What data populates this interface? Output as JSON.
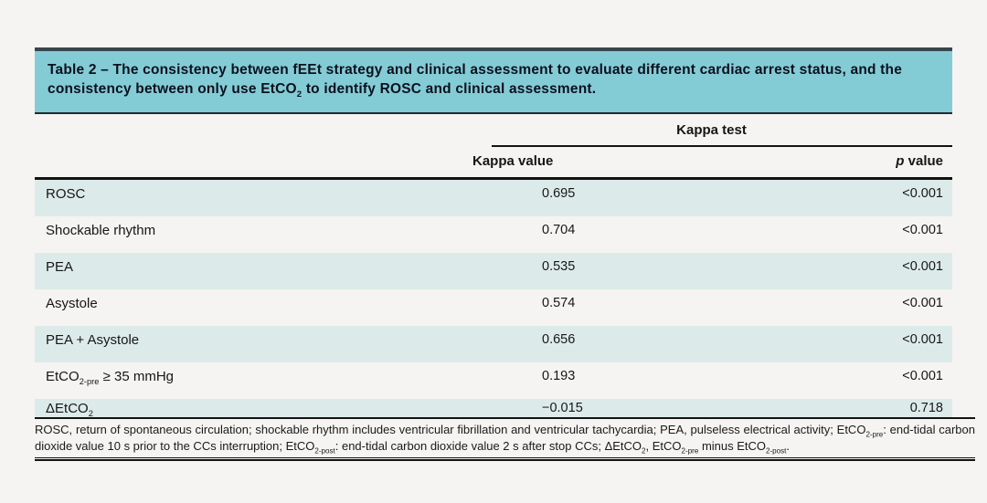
{
  "colors": {
    "caption_bg": "#84ccd5",
    "row_stripe": "#dcebea",
    "caption_border_top": "#37454c",
    "rule": "#121212",
    "page_bg": "#f5f4f2"
  },
  "table": {
    "caption_parts": [
      {
        "t": "Table 2 – The consistency between fEEt strategy and clinical assessment to evaluate different cardiac arrest status, and the consistency between only use EtCO"
      },
      {
        "t": "2",
        "sub": true
      },
      {
        "t": " to identify ROSC and clinical assessment."
      }
    ],
    "header": {
      "group_label": "Kappa test",
      "columns": [
        {
          "parts": [
            {
              "t": "Kappa value"
            }
          ]
        },
        {
          "parts": [
            {
              "t": "p",
              "italic": true
            },
            {
              "t": " value"
            }
          ]
        }
      ]
    },
    "rows": [
      {
        "label_parts": [
          {
            "t": "ROSC"
          }
        ],
        "kappa": "0.695",
        "p": "<0.001"
      },
      {
        "label_parts": [
          {
            "t": "Shockable rhythm"
          }
        ],
        "kappa": "0.704",
        "p": "<0.001"
      },
      {
        "label_parts": [
          {
            "t": "PEA"
          }
        ],
        "kappa": "0.535",
        "p": "<0.001"
      },
      {
        "label_parts": [
          {
            "t": "Asystole"
          }
        ],
        "kappa": "0.574",
        "p": "<0.001"
      },
      {
        "label_parts": [
          {
            "t": "PEA + Asystole"
          }
        ],
        "kappa": "0.656",
        "p": "<0.001"
      },
      {
        "label_parts": [
          {
            "t": "EtCO"
          },
          {
            "t": "2-pre",
            "sub": true
          },
          {
            "t": " ≥ 35 mmHg"
          }
        ],
        "kappa": "0.193",
        "p": "<0.001"
      },
      {
        "label_parts": [
          {
            "t": "ΔEtCO"
          },
          {
            "t": "2",
            "sub": true
          }
        ],
        "kappa": "−0.015",
        "p": "0.718"
      }
    ],
    "footnote_parts": [
      {
        "t": "ROSC, return of spontaneous circulation; shockable rhythm includes ventricular fibrillation and ventricular tachycardia; PEA, pulseless electrical activity; EtCO"
      },
      {
        "t": "2-pre",
        "sub": true
      },
      {
        "t": ": end-tidal carbon dioxide value 10 s prior to the CCs interruption; EtCO"
      },
      {
        "t": "2-post",
        "sub": true
      },
      {
        "t": ": end-tidal carbon dioxide value 2 s after stop CCs; ΔEtCO"
      },
      {
        "t": "2",
        "sub": true
      },
      {
        "t": ", EtCO"
      },
      {
        "t": "2-pre",
        "sub": true
      },
      {
        "t": " minus EtCO"
      },
      {
        "t": "2-post",
        "sub": true
      },
      {
        "t": "."
      }
    ]
  }
}
